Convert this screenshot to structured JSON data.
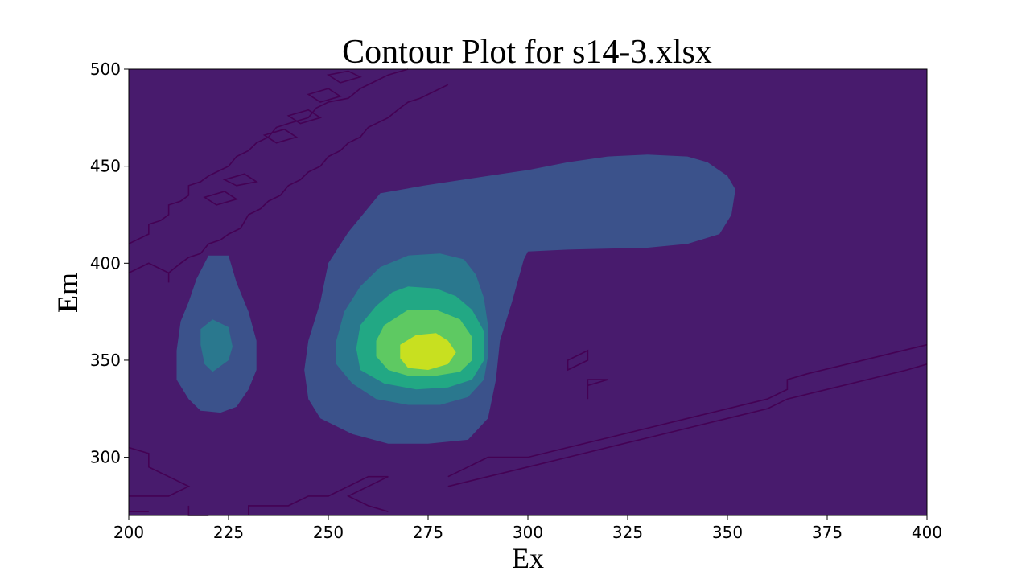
{
  "chart_data": {
    "type": "contour",
    "title": "Contour Plot for s14-3.xlsx",
    "xlabel": "Ex",
    "ylabel": "Em",
    "xlim": [
      200,
      400
    ],
    "ylim": [
      270,
      500
    ],
    "x_ticks": [
      "200",
      "225",
      "250",
      "275",
      "300",
      "325",
      "350",
      "375",
      "400"
    ],
    "y_ticks": [
      "300",
      "350",
      "400",
      "450",
      "500"
    ],
    "x_tick_values": [
      200,
      225,
      250,
      275,
      300,
      325,
      350,
      375,
      400
    ],
    "y_tick_values": [
      300,
      350,
      400,
      450,
      500
    ],
    "colormap": "viridis",
    "level_colors": [
      "#471365",
      "#3b528b",
      "#2a788e",
      "#22a884",
      "#5ec962",
      "#c8e020"
    ],
    "line_color": "#440154",
    "background_level_color": "#481b6d",
    "peaks": [
      {
        "ex": 274,
        "em": 355,
        "level": "highest"
      },
      {
        "ex": 221,
        "em": 357,
        "level": "secondary"
      }
    ],
    "grid": false,
    "legend": "none"
  }
}
